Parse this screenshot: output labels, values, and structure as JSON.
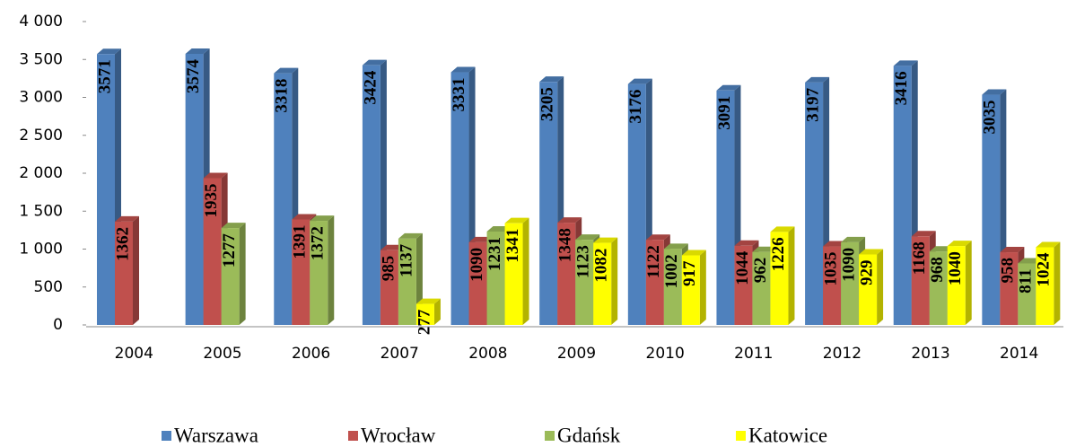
{
  "chart_data": {
    "type": "bar",
    "categories": [
      "2004",
      "2005",
      "2006",
      "2007",
      "2008",
      "2009",
      "2010",
      "2011",
      "2012",
      "2013",
      "2014"
    ],
    "series": [
      {
        "name": "Warszawa",
        "color": "#4f81bd",
        "values": [
          3571,
          3574,
          3318,
          3424,
          3331,
          3205,
          3176,
          3091,
          3197,
          3416,
          3035
        ]
      },
      {
        "name": "Wrocław",
        "color": "#c0504d",
        "values": [
          1362,
          1935,
          1391,
          985,
          1090,
          1348,
          1122,
          1044,
          1035,
          1168,
          958
        ]
      },
      {
        "name": "Gdańsk",
        "color": "#9bbb59",
        "values": [
          null,
          1277,
          1372,
          1137,
          1231,
          1123,
          1002,
          962,
          1090,
          968,
          811
        ]
      },
      {
        "name": "Katowice",
        "color": "#ffff00",
        "values": [
          null,
          null,
          null,
          277,
          1341,
          1082,
          917,
          1226,
          929,
          1040,
          1024
        ]
      }
    ],
    "ylim": [
      0,
      4000
    ],
    "yticks": [
      0,
      500,
      {
        "value": 1000,
        "label": "1 000"
      },
      {
        "value": 1500,
        "label": "1 500"
      },
      {
        "value": 2000,
        "label": "2 000"
      },
      {
        "value": 2500,
        "label": "2 500"
      },
      {
        "value": 3000,
        "label": "3 000"
      },
      {
        "value": 3500,
        "label": "3 500"
      },
      {
        "value": 4000,
        "label": "4 000"
      }
    ],
    "legend": "bottom"
  }
}
